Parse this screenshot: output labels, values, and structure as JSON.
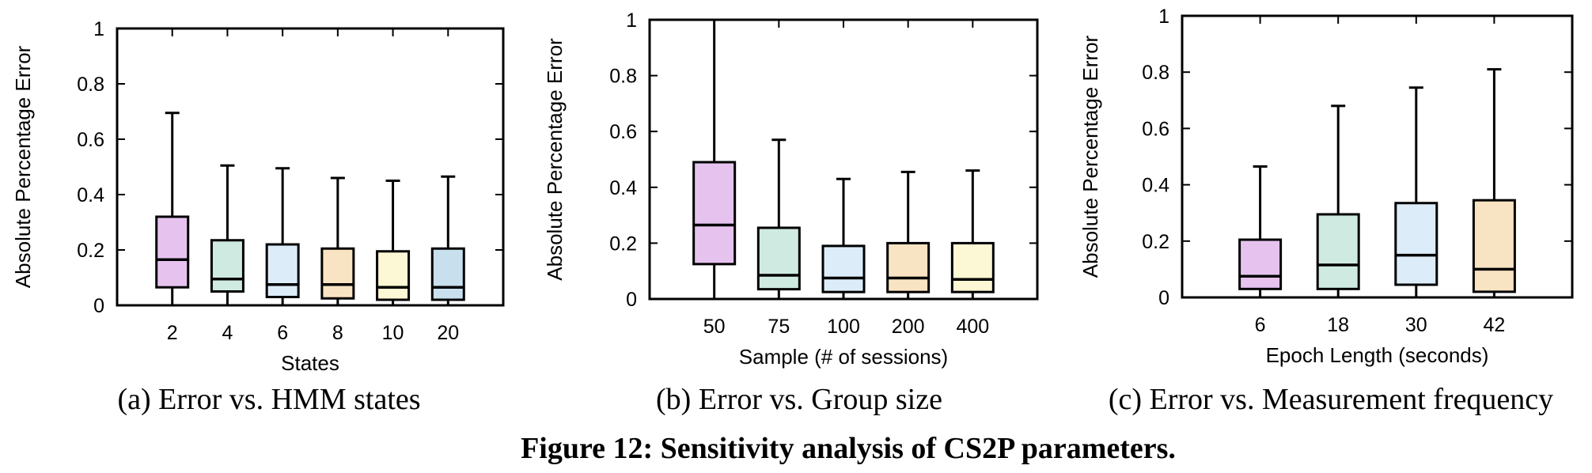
{
  "figure": {
    "caption": "Figure 12: Sensitivity analysis of CS2P parameters."
  },
  "chart_data": [
    {
      "type": "box",
      "subcaption": "(a) Error vs. HMM states",
      "xlabel": "States",
      "ylabel": "Absolute Percentage Error",
      "ylim": [
        0,
        1
      ],
      "yticks": [
        "0",
        "0.2",
        "0.4",
        "0.6",
        "0.8",
        "1"
      ],
      "categories": [
        "2",
        "4",
        "6",
        "8",
        "10",
        "20"
      ],
      "boxes": [
        {
          "min": 0,
          "q1": 0.065,
          "median": 0.165,
          "q3": 0.32,
          "max": 0.695,
          "color": "#e6c3ef"
        },
        {
          "min": 0,
          "q1": 0.05,
          "median": 0.095,
          "q3": 0.235,
          "max": 0.505,
          "color": "#cfeae1"
        },
        {
          "min": 0,
          "q1": 0.03,
          "median": 0.075,
          "q3": 0.22,
          "max": 0.495,
          "color": "#dcedf9"
        },
        {
          "min": 0,
          "q1": 0.025,
          "median": 0.075,
          "q3": 0.205,
          "max": 0.46,
          "color": "#f8e3c3"
        },
        {
          "min": 0,
          "q1": 0.02,
          "median": 0.065,
          "q3": 0.195,
          "max": 0.45,
          "color": "#fcf7d4"
        },
        {
          "min": 0,
          "q1": 0.02,
          "median": 0.065,
          "q3": 0.205,
          "max": 0.465,
          "color": "#c8dfee"
        }
      ]
    },
    {
      "type": "box",
      "subcaption": "(b) Error vs. Group size",
      "xlabel": "Sample (# of sessions)",
      "ylabel": "Absolute Percentage Error",
      "ylim": [
        0,
        1
      ],
      "yticks": [
        "0",
        "0.2",
        "0.4",
        "0.6",
        "0.8",
        "1"
      ],
      "categories": [
        "50",
        "75",
        "100",
        "200",
        "400"
      ],
      "boxes": [
        {
          "min": 0,
          "q1": 0.125,
          "median": 0.265,
          "q3": 0.49,
          "max": 1.0,
          "color": "#e6c3ef"
        },
        {
          "min": 0,
          "q1": 0.035,
          "median": 0.085,
          "q3": 0.255,
          "max": 0.57,
          "color": "#cfeae1"
        },
        {
          "min": 0,
          "q1": 0.025,
          "median": 0.075,
          "q3": 0.19,
          "max": 0.43,
          "color": "#dcedf9"
        },
        {
          "min": 0,
          "q1": 0.025,
          "median": 0.075,
          "q3": 0.2,
          "max": 0.455,
          "color": "#f8e3c3"
        },
        {
          "min": 0,
          "q1": 0.025,
          "median": 0.07,
          "q3": 0.2,
          "max": 0.46,
          "color": "#fcf7d4"
        }
      ]
    },
    {
      "type": "box",
      "subcaption": "(c) Error vs. Measurement frequency",
      "xlabel": "Epoch Length (seconds)",
      "ylabel": "Absolute Percentage Error",
      "ylim": [
        0,
        1
      ],
      "yticks": [
        "0",
        "0.2",
        "0.4",
        "0.6",
        "0.8",
        "1"
      ],
      "categories": [
        "6",
        "18",
        "30",
        "42"
      ],
      "boxes": [
        {
          "min": 0,
          "q1": 0.03,
          "median": 0.075,
          "q3": 0.205,
          "max": 0.465,
          "color": "#e6c3ef"
        },
        {
          "min": 0,
          "q1": 0.03,
          "median": 0.115,
          "q3": 0.295,
          "max": 0.68,
          "color": "#cfeae1"
        },
        {
          "min": 0,
          "q1": 0.045,
          "median": 0.15,
          "q3": 0.335,
          "max": 0.745,
          "color": "#dcedf9"
        },
        {
          "min": 0,
          "q1": 0.02,
          "median": 0.1,
          "q3": 0.345,
          "max": 0.81,
          "color": "#f8e3c3"
        }
      ]
    }
  ]
}
